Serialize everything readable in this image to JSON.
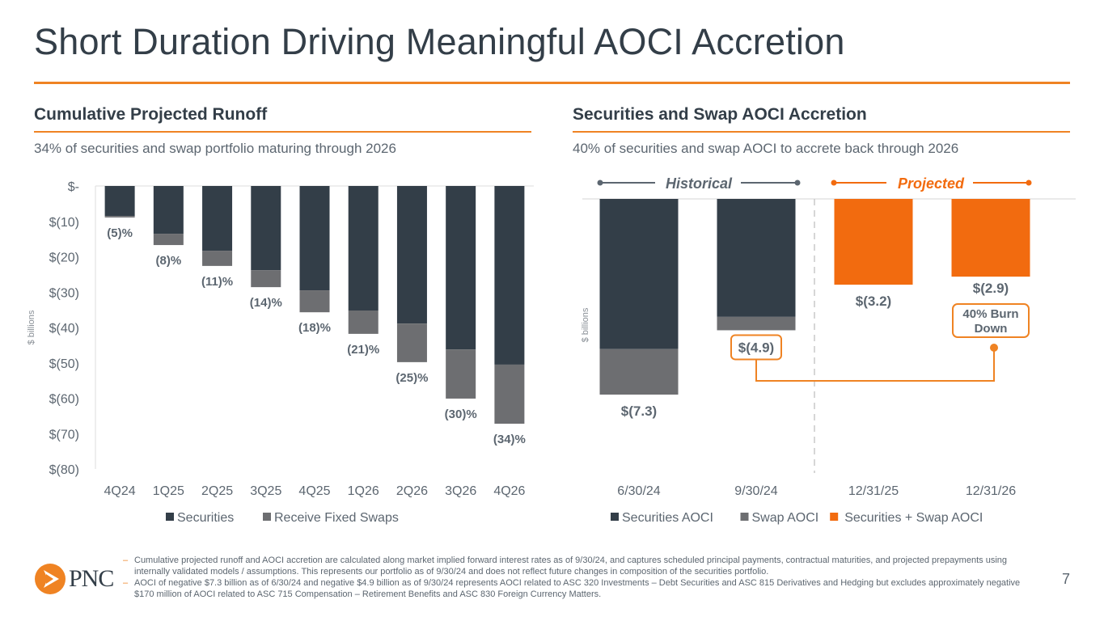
{
  "title": "Short Duration Driving Meaningful AOCI Accretion",
  "colors": {
    "accent": "#ef8323",
    "securities": "#333e48",
    "swaps": "#6d6e71",
    "projected": "#f26b0f",
    "text_gray": "#5c6670"
  },
  "left_section": {
    "title": "Cumulative Projected Runoff",
    "subtitle": "34% of securities and swap portfolio maturing through 2026"
  },
  "right_section": {
    "title": "Securities and Swap AOCI Accretion",
    "subtitle": "40% of securities and swap AOCI to accrete back through 2026"
  },
  "chart_data": [
    {
      "type": "bar",
      "stacked": true,
      "title": "Cumulative Projected Runoff",
      "ylabel": "$ billions",
      "xlabel": "",
      "ylim": [
        -80,
        0
      ],
      "yticks": [
        0,
        -10,
        -20,
        -30,
        -40,
        -50,
        -60,
        -70,
        -80
      ],
      "ytick_labels": [
        "$-",
        "$(10)",
        "$(20)",
        "$(30)",
        "$(40)",
        "$(50)",
        "$(60)",
        "$(70)",
        "$(80)"
      ],
      "categories": [
        "4Q24",
        "1Q25",
        "2Q25",
        "3Q25",
        "4Q25",
        "1Q26",
        "2Q26",
        "3Q26",
        "4Q26"
      ],
      "series": [
        {
          "name": "Securities",
          "color": "#333e48",
          "values": [
            -8.5,
            -13.5,
            -18.3,
            -23.8,
            -29.5,
            -35.2,
            -38.9,
            -46.2,
            -50.5
          ]
        },
        {
          "name": "Receive Fixed Swaps",
          "color": "#6d6e71",
          "values": [
            -0.4,
            -3.2,
            -4.3,
            -4.8,
            -6.2,
            -6.6,
            -10.9,
            -13.9,
            -16.7
          ]
        }
      ],
      "data_labels": [
        "(5)%",
        "(8)%",
        "(11)%",
        "(14)%",
        "(18)%",
        "(21)%",
        "(25)%",
        "(30)%",
        "(34)%"
      ],
      "legend": [
        "Securities",
        "Receive Fixed Swaps"
      ],
      "legend_position": "bottom",
      "grid": false
    },
    {
      "type": "bar",
      "stacked": true,
      "title": "Securities and Swap AOCI Accretion",
      "ylabel": "$ billions",
      "xlabel": "",
      "ylim": [
        -7.3,
        0
      ],
      "categories": [
        "6/30/24",
        "9/30/24",
        "12/31/25",
        "12/31/26"
      ],
      "series": [
        {
          "name": "Securities AOCI",
          "color": "#333e48",
          "values": [
            -5.6,
            -4.4,
            null,
            null
          ]
        },
        {
          "name": "Swap AOCI",
          "color": "#6d6e71",
          "values": [
            -1.7,
            -0.5,
            null,
            null
          ]
        },
        {
          "name": "Securities + Swap AOCI",
          "color": "#f26b0f",
          "values": [
            null,
            null,
            -3.2,
            -2.9
          ]
        }
      ],
      "totals": [
        -7.3,
        -4.9,
        -3.2,
        -2.9
      ],
      "data_labels": [
        "$(7.3)",
        "$(4.9)",
        "$(3.2)",
        "$(2.9)"
      ],
      "period_labels": {
        "historical": "Historical",
        "projected": "Projected"
      },
      "annotation": {
        "text_line1": "40% Burn",
        "text_line2": "Down",
        "from": "9/30/24",
        "to": "12/31/26"
      },
      "legend": [
        "Securities AOCI",
        "Swap AOCI",
        "Securities + Swap AOCI"
      ],
      "legend_position": "bottom",
      "grid": false
    }
  ],
  "footer": {
    "notes": [
      "Cumulative projected runoff and AOCI accretion are calculated along market implied forward interest rates as of 9/30/24, and captures scheduled principal payments, contractual maturities, and projected prepayments using internally validated models / assumptions. This represents our portfolio as of 9/30/24 and does not reflect future changes in composition of the securities portfolio.",
      "AOCI of negative $7.3 billion as of 6/30/24 and negative $4.9 billion as of 9/30/24 represents AOCI related to ASC 320 Investments – Debt Securities and ASC 815 Derivatives and Hedging but excludes approximately negative $170 million of AOCI related to ASC 715 Compensation – Retirement Benefits and ASC 830 Foreign Currency Matters."
    ],
    "logo_text": "PNC",
    "page_number": "7"
  }
}
